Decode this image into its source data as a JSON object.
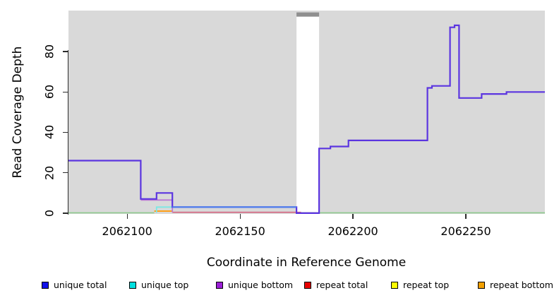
{
  "axes": {
    "x_title": "Coordinate in Reference Genome",
    "y_title": "Read Coverage Depth"
  },
  "legend": {
    "items": [
      {
        "label": "unique total",
        "color": "#1010e8"
      },
      {
        "label": "unique top",
        "color": "#00e0e0"
      },
      {
        "label": "unique bottom",
        "color": "#9b1fd6"
      },
      {
        "label": "repeat total",
        "color": "#e80000"
      },
      {
        "label": "repeat top",
        "color": "#fdfd00"
      },
      {
        "label": "repeat bottom",
        "color": "#f2a000"
      }
    ]
  },
  "chart_data": {
    "type": "line",
    "subtype": "step-coverage",
    "title": "",
    "xlabel": "Coordinate in Reference Genome",
    "ylabel": "Read Coverage Depth",
    "xlim": [
      2062074,
      2062285
    ],
    "ylim": [
      -0.4,
      100.3
    ],
    "grid": false,
    "panel_background": "#d9d9d9",
    "axis_color": "#2b2b2b",
    "x_ticks": [
      2062100,
      2062150,
      2062200,
      2062250
    ],
    "y_ticks": [
      0,
      20,
      40,
      60,
      80
    ],
    "masked_region": {
      "x0": 2062175,
      "x1": 2062185,
      "fill": "#ffffff",
      "y0": 0.6,
      "y1": 97.3,
      "top_bar_color": "#8f8f8f",
      "top_bar_y1": 99.4
    },
    "series": [
      {
        "name": "zero line left (unique/repeat top overlap)",
        "color": "#8fca8f",
        "width": 1.6,
        "mode": "poly",
        "points": [
          [
            2062074,
            0.15
          ],
          [
            2062112,
            0.15
          ]
        ]
      },
      {
        "name": "zero line right (unique/repeat top overlap)",
        "color": "#8fca8f",
        "width": 1.6,
        "mode": "poly",
        "points": [
          [
            2062185,
            0.15
          ],
          [
            2062285,
            0.15
          ]
        ]
      },
      {
        "name": "repeat total",
        "color": "#d4647f",
        "width": 1.6,
        "mode": "poly",
        "points": [
          [
            2062120,
            0.4
          ],
          [
            2062177,
            0.4
          ]
        ]
      },
      {
        "name": "repeat bottom",
        "color": "#ffa018",
        "width": 2,
        "mode": "poly",
        "points": [
          [
            2062112,
            1
          ],
          [
            2062120,
            1
          ]
        ]
      },
      {
        "name": "unique bottom",
        "color": "#bb7ad4",
        "width": 1.8,
        "mode": "poly",
        "points": [
          [
            2062106,
            6.5
          ],
          [
            2062120,
            6.5
          ],
          [
            2062120,
            0.4
          ]
        ]
      },
      {
        "name": "unique top",
        "color": "#7ce8e4",
        "width": 1.8,
        "mode": "poly",
        "points": [
          [
            2062113,
            0.2
          ],
          [
            2062113,
            3
          ],
          [
            2062120,
            3
          ]
        ]
      },
      {
        "name": "unique total",
        "color": "#5b35e0",
        "width": 2.2,
        "mode": "step",
        "points": [
          [
            2062074,
            26
          ],
          [
            2062106,
            7
          ],
          [
            2062113,
            10
          ],
          [
            2062120,
            3
          ],
          [
            2062175,
            0
          ],
          [
            2062185,
            32
          ],
          [
            2062190,
            33
          ],
          [
            2062198,
            36
          ],
          [
            2062233,
            62
          ],
          [
            2062235,
            63
          ],
          [
            2062243,
            92
          ],
          [
            2062245,
            93
          ],
          [
            2062247,
            57
          ],
          [
            2062257,
            59
          ],
          [
            2062268,
            60
          ],
          [
            2062285,
            60
          ]
        ]
      },
      {
        "name": "unique total over unique top (blend)",
        "color": "#4f82ec",
        "width": 2.2,
        "mode": "poly",
        "points": [
          [
            2062120,
            3
          ],
          [
            2062175,
            3
          ]
        ]
      }
    ]
  }
}
